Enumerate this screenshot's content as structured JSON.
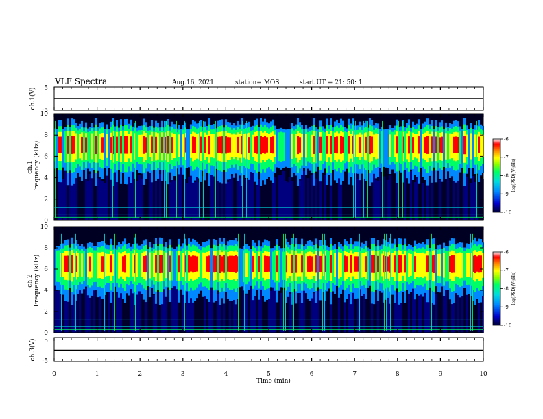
{
  "header": {
    "title": "VLF Spectra",
    "date": "Aug.16, 2021",
    "station": "station= MOS",
    "start": "start UT =   21: 50: 1"
  },
  "colors": {
    "colormap": [
      "#000033",
      "#0000cc",
      "#0088ff",
      "#00dddd",
      "#00ff66",
      "#88ff00",
      "#ffff00",
      "#ff8800",
      "#ff0000",
      "#ffffff"
    ],
    "frame": "#000000"
  },
  "chart_data": [
    {
      "type": "line",
      "ylabel": "ch.1(V)",
      "ylim": [
        -5,
        5
      ],
      "yticks": [
        "5",
        "-5"
      ],
      "series": [
        {
          "x": [
            0,
            10
          ],
          "values": [
            0,
            0
          ]
        }
      ]
    },
    {
      "type": "heatmap",
      "ylabel_line1": "ch.1",
      "ylabel_line2": "Frequency (kHz)",
      "ylim": [
        0,
        10
      ],
      "yticks": [
        "0",
        "2",
        "4",
        "6",
        "8",
        "10"
      ],
      "xlim": [
        0,
        10
      ],
      "band_center_khz": 7.2,
      "colorbar": {
        "label": "log(PSD)(V²/Hz)",
        "range": [
          -10,
          -6
        ],
        "ticks": [
          "-6",
          "-7",
          "-8",
          "-9",
          "-10"
        ]
      }
    },
    {
      "type": "heatmap",
      "ylabel_line1": "ch.2",
      "ylabel_line2": "Frequency (kHz)",
      "ylim": [
        0,
        10
      ],
      "yticks": [
        "0",
        "2",
        "4",
        "6",
        "8",
        "10"
      ],
      "xlim": [
        0,
        10
      ],
      "band_center_khz": 6.6,
      "colorbar": {
        "label": "log(PSD)(V²/Hz)",
        "range": [
          -10,
          -6
        ],
        "ticks": [
          "-6",
          "-7",
          "-8",
          "-9",
          "-10"
        ]
      }
    },
    {
      "type": "line",
      "ylabel": "ch.3(V)",
      "ylim": [
        -5,
        5
      ],
      "yticks": [
        "5",
        "-5"
      ],
      "series": [
        {
          "x": [
            0,
            10
          ],
          "values": [
            -0.3,
            -0.3
          ]
        }
      ]
    }
  ],
  "x_axis": {
    "label": "Time (min)",
    "range": [
      0,
      10
    ],
    "ticks": [
      "0",
      "1",
      "2",
      "3",
      "4",
      "5",
      "6",
      "7",
      "8",
      "9",
      "10"
    ]
  }
}
